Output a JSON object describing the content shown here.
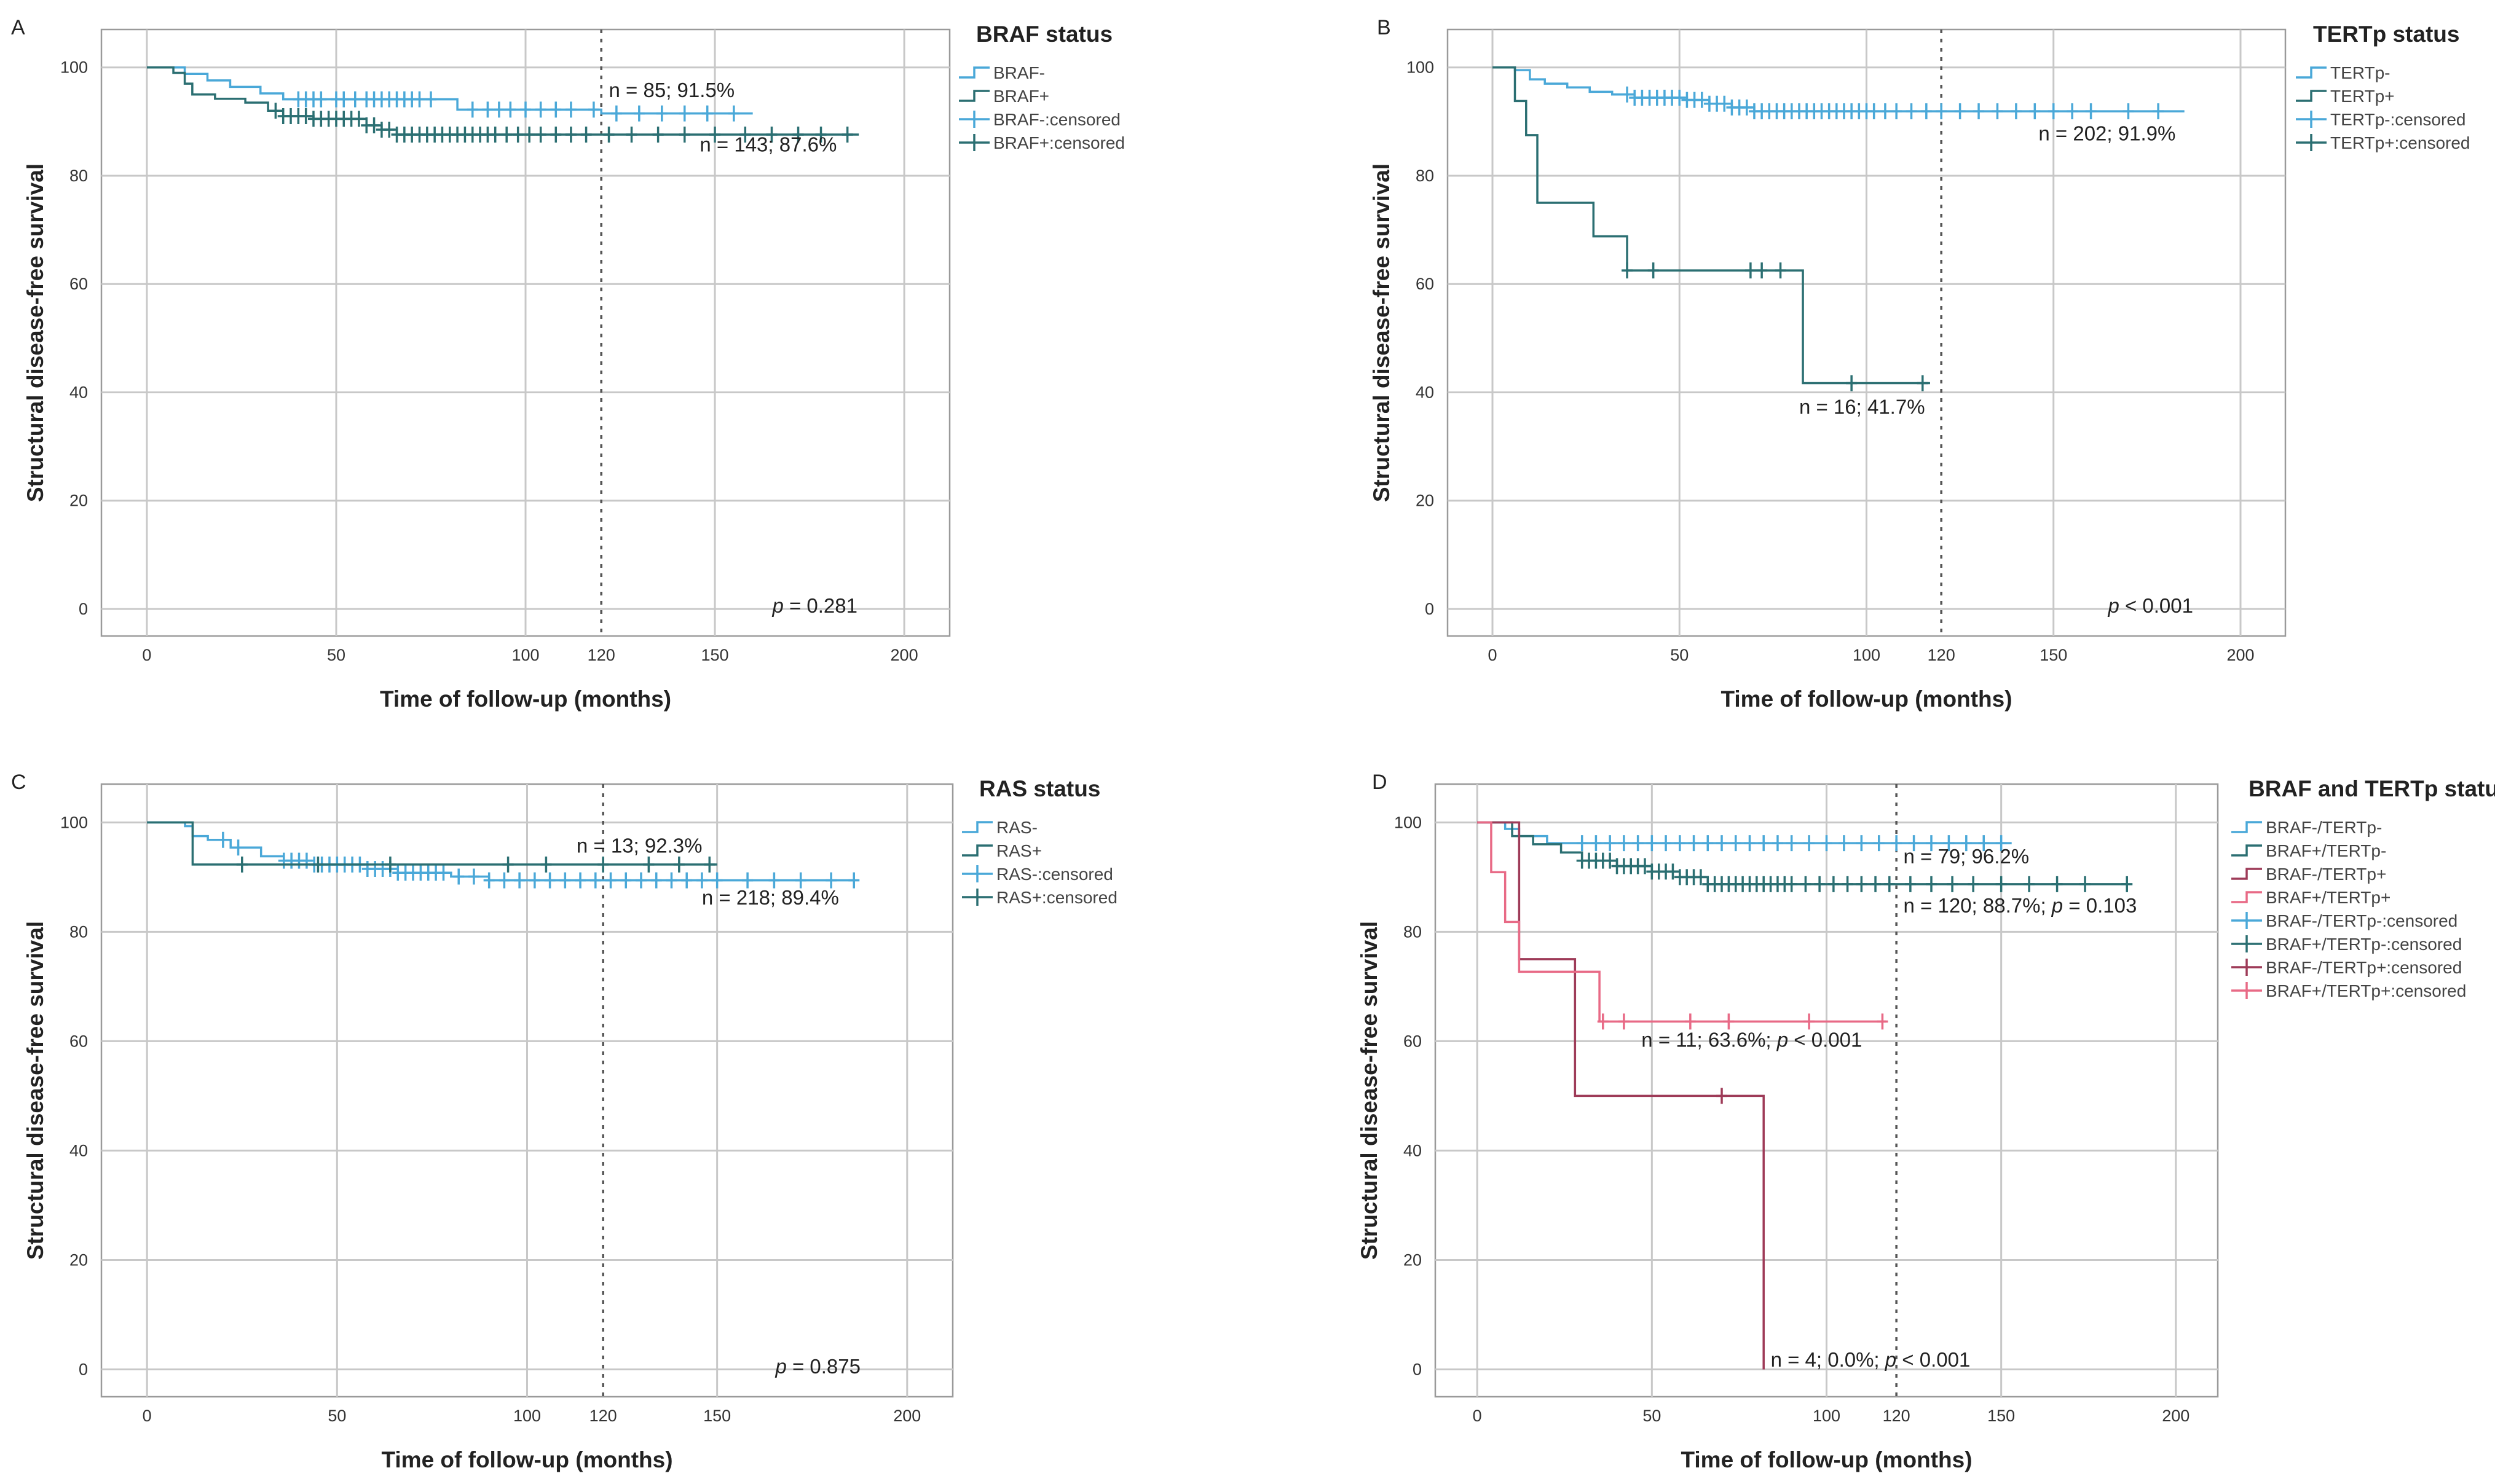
{
  "chart_data": [
    {
      "type": "line",
      "panel": "A",
      "legend_title": "BRAF status",
      "xlabel": "Time of follow-up (months)",
      "ylabel": "Structural disease-free survival",
      "xlim": [
        -12,
        212
      ],
      "ylim": [
        -5,
        107
      ],
      "xticks": [
        0,
        50,
        100,
        150,
        200
      ],
      "yticks": [
        0,
        20,
        40,
        60,
        80,
        100
      ],
      "reference_line_x": 120,
      "reference_label": "120",
      "legend": [
        "BRAF-",
        "BRAF+",
        "BRAF-:censored",
        "BRAF+:censored"
      ],
      "series": [
        {
          "name": "BRAF-",
          "color": "#4aa8d8",
          "points": [
            [
              0,
              100
            ],
            [
              6,
              100
            ],
            [
              10,
              98.8
            ],
            [
              16,
              97.6
            ],
            [
              22,
              96.4
            ],
            [
              30,
              95.2
            ],
            [
              36,
              94.1
            ],
            [
              80,
              94.1
            ],
            [
              82,
              92.2
            ],
            [
              120,
              91.5
            ],
            [
              160,
              91.5
            ]
          ],
          "censored": [
            40,
            42,
            44,
            46,
            50,
            52,
            55,
            58,
            60,
            62,
            64,
            66,
            68,
            70,
            72,
            75,
            86,
            90,
            93,
            96,
            100,
            104,
            108,
            112,
            118,
            124,
            130,
            136,
            142,
            148,
            155
          ]
        },
        {
          "name": "BRAF+",
          "color": "#2b6f72",
          "points": [
            [
              0,
              100
            ],
            [
              7,
              99
            ],
            [
              10,
              97
            ],
            [
              12,
              95
            ],
            [
              18,
              94.2
            ],
            [
              26,
              93.5
            ],
            [
              32,
              92
            ],
            [
              36,
              91
            ],
            [
              44,
              90.5
            ],
            [
              58,
              89.3
            ],
            [
              62,
              88.5
            ],
            [
              66,
              87.6
            ],
            [
              188,
              87.6
            ]
          ],
          "censored": [
            34,
            36,
            38,
            40,
            42,
            44,
            46,
            48,
            50,
            52,
            54,
            56,
            58,
            60,
            62,
            64,
            66,
            68,
            70,
            72,
            74,
            76,
            78,
            80,
            82,
            84,
            86,
            88,
            90,
            92,
            95,
            98,
            101,
            104,
            108,
            112,
            116,
            122,
            128,
            135,
            142,
            150,
            158,
            165,
            172,
            178,
            185
          ]
        }
      ],
      "annotations": [
        {
          "text": "n = 85; 91.5%",
          "x": 122,
          "y": 94.5
        },
        {
          "text": "n = 143; 87.6%",
          "x": 146,
          "y": 84.5
        }
      ],
      "p_value": {
        "label": "p",
        "rest": " = 0.281"
      }
    },
    {
      "type": "line",
      "panel": "B",
      "legend_title": "TERTp status",
      "xlabel": "Time of follow-up (months)",
      "ylabel": "Structural disease-free survival",
      "xlim": [
        -12,
        212
      ],
      "ylim": [
        -5,
        107
      ],
      "xticks": [
        0,
        50,
        100,
        150,
        200
      ],
      "yticks": [
        0,
        20,
        40,
        60,
        80,
        100
      ],
      "reference_line_x": 120,
      "reference_label": "120",
      "legend": [
        "TERTp-",
        "TERTp+",
        "TERTp-:censored",
        "TERTp+:censored"
      ],
      "series": [
        {
          "name": "TERTp-",
          "color": "#4aa8d8",
          "points": [
            [
              0,
              100
            ],
            [
              6,
              99.5
            ],
            [
              10,
              97.8
            ],
            [
              14,
              97
            ],
            [
              20,
              96.3
            ],
            [
              26,
              95.5
            ],
            [
              32,
              95
            ],
            [
              38,
              94.4
            ],
            [
              52,
              94
            ],
            [
              58,
              93.3
            ],
            [
              64,
              92.6
            ],
            [
              70,
              91.9
            ],
            [
              185,
              91.9
            ]
          ],
          "censored": [
            36,
            38,
            40,
            42,
            44,
            46,
            48,
            50,
            52,
            54,
            56,
            58,
            60,
            62,
            64,
            66,
            68,
            70,
            72,
            74,
            76,
            78,
            80,
            82,
            84,
            86,
            88,
            90,
            92,
            94,
            96,
            98,
            100,
            102,
            105,
            108,
            112,
            116,
            120,
            125,
            130,
            135,
            140,
            145,
            150,
            155,
            160,
            170,
            178
          ]
        },
        {
          "name": "TERTp+",
          "color": "#2b6f72",
          "points": [
            [
              0,
              100
            ],
            [
              6,
              93.8
            ],
            [
              9,
              87.5
            ],
            [
              12,
              75
            ],
            [
              27,
              68.8
            ],
            [
              36,
              62.5
            ],
            [
              83,
              62.5
            ],
            [
              83,
              41.7
            ],
            [
              117,
              41.7
            ]
          ],
          "censored": [
            36,
            43,
            69,
            72,
            77,
            96,
            115
          ]
        }
      ],
      "annotations": [
        {
          "text": "n = 202; 91.9%",
          "x": 146,
          "y": 86.5
        },
        {
          "text": "n = 16; 41.7%",
          "x": 82,
          "y": 36
        }
      ],
      "p_value": {
        "label": "p",
        "rest": " < 0.001"
      }
    },
    {
      "type": "line",
      "panel": "C",
      "legend_title": "RAS status",
      "xlabel": "Time of follow-up (months)",
      "ylabel": "Structural disease-free survival",
      "xlim": [
        -12,
        212
      ],
      "ylim": [
        -5,
        107
      ],
      "xticks": [
        0,
        50,
        100,
        150,
        200
      ],
      "yticks": [
        0,
        20,
        40,
        60,
        80,
        100
      ],
      "reference_line_x": 120,
      "reference_label": "120",
      "legend": [
        "RAS-",
        "RAS+",
        "RAS-:censored",
        "RAS+:censored"
      ],
      "series": [
        {
          "name": "RAS-",
          "color": "#4aa8d8",
          "points": [
            [
              0,
              100
            ],
            [
              10,
              99.3
            ],
            [
              12,
              97.5
            ],
            [
              16,
              96.8
            ],
            [
              22,
              95.4
            ],
            [
              30,
              93.8
            ],
            [
              36,
              93
            ],
            [
              44,
              92.3
            ],
            [
              58,
              91.5
            ],
            [
              66,
              90.8
            ],
            [
              80,
              90.1
            ],
            [
              90,
              89.4
            ],
            [
              186,
              89.4
            ]
          ],
          "censored": [
            20,
            24,
            36,
            38,
            40,
            42,
            44,
            46,
            48,
            50,
            52,
            54,
            56,
            58,
            60,
            62,
            64,
            66,
            68,
            70,
            72,
            74,
            76,
            78,
            82,
            86,
            90,
            94,
            98,
            102,
            106,
            110,
            114,
            118,
            122,
            126,
            130,
            134,
            138,
            142,
            146,
            150,
            158,
            165,
            172,
            180,
            186
          ]
        },
        {
          "name": "RAS+",
          "color": "#2b6f72",
          "points": [
            [
              0,
              100
            ],
            [
              12,
              100
            ],
            [
              12,
              92.3
            ],
            [
              150,
              92.3
            ]
          ],
          "censored": [
            25,
            45,
            64,
            95,
            105,
            120,
            132,
            140,
            148
          ]
        }
      ],
      "annotations": [
        {
          "text": "n = 13; 92.3%",
          "x": 113,
          "y": 94.5
        },
        {
          "text": "n = 218; 89.4%",
          "x": 146,
          "y": 85
        }
      ],
      "p_value": {
        "label": "p",
        "rest": " = 0.875"
      }
    },
    {
      "type": "line",
      "panel": "D",
      "legend_title": "BRAF and TERTp status",
      "xlabel": "Time of follow-up (months)",
      "ylabel": "Structural disease-free survival",
      "xlim": [
        -12,
        212
      ],
      "ylim": [
        -5,
        107
      ],
      "xticks": [
        0,
        50,
        100,
        150,
        200
      ],
      "yticks": [
        0,
        20,
        40,
        60,
        80,
        100
      ],
      "reference_line_x": 120,
      "reference_label": "120",
      "legend": [
        "BRAF-/TERTp-",
        "BRAF+/TERTp-",
        "BRAF-/TERTp+",
        "BRAF+/TERTp+",
        "BRAF-/TERTp-:censored",
        "BRAF+/TERTp-:censored",
        "BRAF-/TERTp+:censored",
        "BRAF+/TERTp+:censored"
      ],
      "series": [
        {
          "name": "BRAF-/TERTp-",
          "color": "#4aa8d8",
          "points": [
            [
              0,
              100
            ],
            [
              8,
              98.8
            ],
            [
              12,
              97.5
            ],
            [
              20,
              96.2
            ],
            [
              153,
              96.2
            ]
          ],
          "censored": [
            30,
            34,
            38,
            42,
            46,
            50,
            54,
            58,
            62,
            66,
            70,
            74,
            78,
            82,
            86,
            90,
            95,
            100,
            105,
            110,
            115,
            120,
            125,
            130,
            135,
            140,
            145,
            150
          ]
        },
        {
          "name": "BRAF+/TERTp-",
          "color": "#2b6f72",
          "points": [
            [
              0,
              100
            ],
            [
              10,
              97.5
            ],
            [
              16,
              96
            ],
            [
              24,
              94.5
            ],
            [
              30,
              93
            ],
            [
              40,
              92
            ],
            [
              50,
              91
            ],
            [
              58,
              90
            ],
            [
              66,
              88.7
            ],
            [
              186,
              88.7
            ]
          ],
          "censored": [
            30,
            32,
            34,
            36,
            38,
            40,
            42,
            44,
            46,
            48,
            50,
            52,
            54,
            56,
            58,
            60,
            62,
            64,
            66,
            68,
            70,
            72,
            74,
            76,
            78,
            80,
            82,
            84,
            86,
            88,
            90,
            94,
            98,
            102,
            106,
            110,
            114,
            118,
            124,
            130,
            136,
            142,
            150,
            158,
            166,
            174,
            186
          ]
        },
        {
          "name": "BRAF-/TERTp+",
          "color": "#9e3b58",
          "points": [
            [
              0,
              100
            ],
            [
              12,
              100
            ],
            [
              12,
              75
            ],
            [
              28,
              75
            ],
            [
              28,
              50
            ],
            [
              82,
              50
            ],
            [
              82,
              0
            ]
          ],
          "censored": [
            70
          ]
        },
        {
          "name": "BRAF+/TERTp+",
          "color": "#e86a86",
          "points": [
            [
              0,
              100
            ],
            [
              4,
              100
            ],
            [
              4,
              90.9
            ],
            [
              8,
              90.9
            ],
            [
              8,
              81.8
            ],
            [
              12,
              81.8
            ],
            [
              12,
              72.7
            ],
            [
              35,
              72.7
            ],
            [
              35,
              63.6
            ],
            [
              117,
              63.6
            ]
          ],
          "censored": [
            36,
            42,
            61,
            72,
            95,
            116
          ]
        }
      ],
      "annotations": [
        {
          "text": "n = 79; 96.2%",
          "x": 122,
          "y": 92.5
        },
        {
          "text": "n = 120; 88.7%; ",
          "italic": "p",
          "rest": " = 0.103",
          "x": 122,
          "y": 83.5
        },
        {
          "text": "n = 11; 63.6%; ",
          "italic": "p",
          "rest": " < 0.001",
          "x": 47,
          "y": 59
        },
        {
          "text": "n = 4; 0.0%; ",
          "italic": "p",
          "rest": " < 0.001",
          "x": 84,
          "y": 0.5
        }
      ]
    }
  ]
}
